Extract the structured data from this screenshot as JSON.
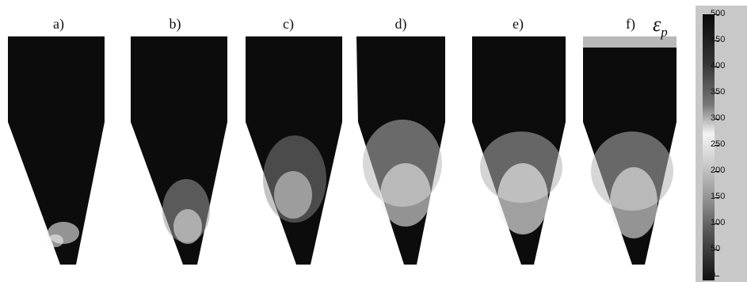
{
  "panels": [
    {
      "label": "a)"
    },
    {
      "label": "b)"
    },
    {
      "label": "c)"
    },
    {
      "label": "d)"
    },
    {
      "label": "e)"
    },
    {
      "label": "f)"
    }
  ],
  "symbol": {
    "base": "ε",
    "sub": "p"
  },
  "colorbar": {
    "ticks": [
      "500",
      "450",
      "400",
      "350",
      "300",
      "250",
      "200",
      "150",
      "100",
      "50",
      "0"
    ],
    "colors": {
      "dark": "#0a0a0a",
      "light": "#f4f4f4",
      "frame": "#c8c8c8"
    }
  }
}
